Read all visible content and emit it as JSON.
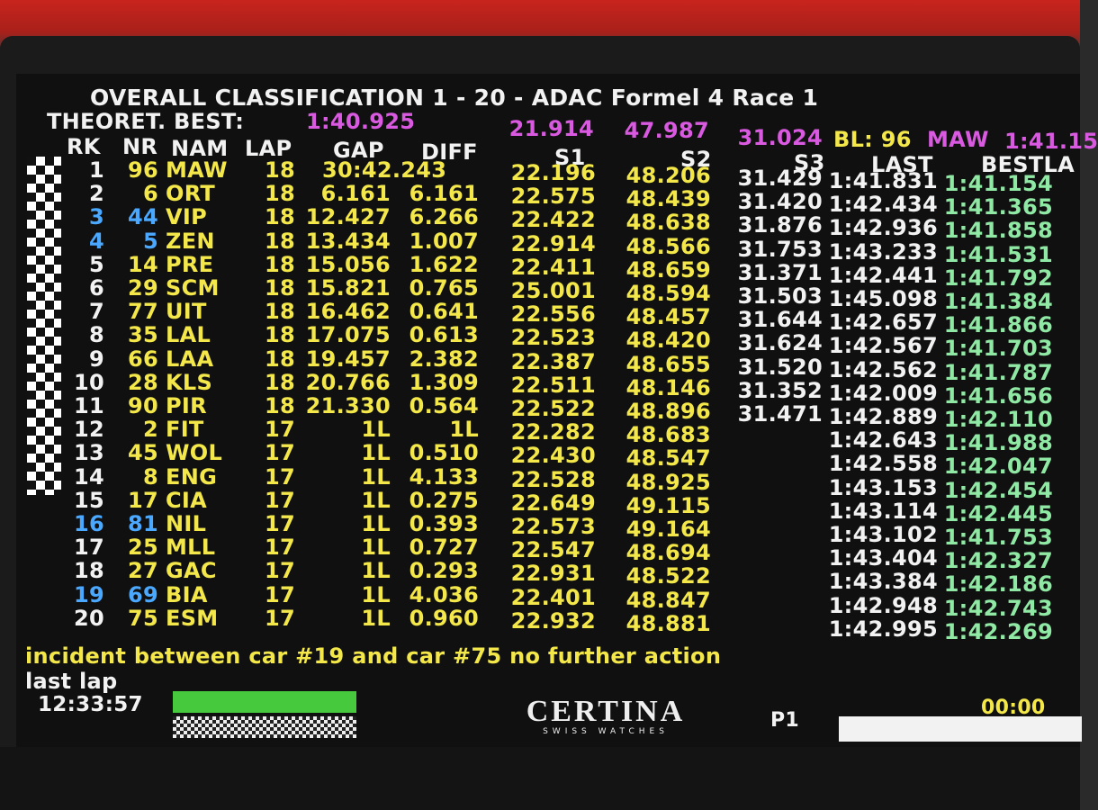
{
  "title": "OVERALL CLASSIFICATION 1 - 20 - ADAC Formel 4 Race 1",
  "theoretical": {
    "label": "THEORET. BEST:",
    "time": "1:40.925",
    "s1": "21.914",
    "s2": "47.987",
    "s3": "31.024",
    "bl_label": "BL: 96",
    "bl_driver": "MAW",
    "bl_time": "1:41.15"
  },
  "headers": {
    "rk": "RK",
    "nr": "NR",
    "nam": "NAM",
    "lap": "LAP",
    "gap": "GAP",
    "diff": "DIFF",
    "s1": "S1",
    "s2": "S2",
    "s3": "S3",
    "last": "LAST",
    "bestlap": "BESTLA"
  },
  "rows": [
    {
      "rk": "1",
      "nr": "96",
      "nam": "MAW",
      "lap": "18",
      "gap": "30:42.243",
      "diff": "",
      "s1": "22.196",
      "s2": "48.206",
      "s3": "31.429",
      "last": "1:41.831",
      "best": "1:41.154",
      "blue": false
    },
    {
      "rk": "2",
      "nr": "6",
      "nam": "ORT",
      "lap": "18",
      "gap": "6.161",
      "diff": "6.161",
      "s1": "22.575",
      "s2": "48.439",
      "s3": "31.420",
      "last": "1:42.434",
      "best": "1:41.365",
      "blue": false
    },
    {
      "rk": "3",
      "nr": "44",
      "nam": "VIP",
      "lap": "18",
      "gap": "12.427",
      "diff": "6.266",
      "s1": "22.422",
      "s2": "48.638",
      "s3": "31.876",
      "last": "1:42.936",
      "best": "1:41.858",
      "blue": true
    },
    {
      "rk": "4",
      "nr": "5",
      "nam": "ZEN",
      "lap": "18",
      "gap": "13.434",
      "diff": "1.007",
      "s1": "22.914",
      "s2": "48.566",
      "s3": "31.753",
      "last": "1:43.233",
      "best": "1:41.531",
      "blue": true
    },
    {
      "rk": "5",
      "nr": "14",
      "nam": "PRE",
      "lap": "18",
      "gap": "15.056",
      "diff": "1.622",
      "s1": "22.411",
      "s2": "48.659",
      "s3": "31.371",
      "last": "1:42.441",
      "best": "1:41.792",
      "blue": false
    },
    {
      "rk": "6",
      "nr": "29",
      "nam": "SCM",
      "lap": "18",
      "gap": "15.821",
      "diff": "0.765",
      "s1": "25.001",
      "s2": "48.594",
      "s3": "31.503",
      "last": "1:45.098",
      "best": "1:41.384",
      "blue": false
    },
    {
      "rk": "7",
      "nr": "77",
      "nam": "UIT",
      "lap": "18",
      "gap": "16.462",
      "diff": "0.641",
      "s1": "22.556",
      "s2": "48.457",
      "s3": "31.644",
      "last": "1:42.657",
      "best": "1:41.866",
      "blue": false
    },
    {
      "rk": "8",
      "nr": "35",
      "nam": "LAL",
      "lap": "18",
      "gap": "17.075",
      "diff": "0.613",
      "s1": "22.523",
      "s2": "48.420",
      "s3": "31.624",
      "last": "1:42.567",
      "best": "1:41.703",
      "blue": false
    },
    {
      "rk": "9",
      "nr": "66",
      "nam": "LAA",
      "lap": "18",
      "gap": "19.457",
      "diff": "2.382",
      "s1": "22.387",
      "s2": "48.655",
      "s3": "31.520",
      "last": "1:42.562",
      "best": "1:41.787",
      "blue": false
    },
    {
      "rk": "10",
      "nr": "28",
      "nam": "KLS",
      "lap": "18",
      "gap": "20.766",
      "diff": "1.309",
      "s1": "22.511",
      "s2": "48.146",
      "s3": "31.352",
      "last": "1:42.009",
      "best": "1:41.656",
      "blue": false
    },
    {
      "rk": "11",
      "nr": "90",
      "nam": "PIR",
      "lap": "18",
      "gap": "21.330",
      "diff": "0.564",
      "s1": "22.522",
      "s2": "48.896",
      "s3": "31.471",
      "last": "1:42.889",
      "best": "1:42.110",
      "blue": false
    },
    {
      "rk": "12",
      "nr": "2",
      "nam": "FIT",
      "lap": "17",
      "gap": "1L",
      "diff": "1L",
      "s1": "22.282",
      "s2": "48.683",
      "s3": "",
      "last": "1:42.643",
      "best": "1:41.988",
      "blue": false
    },
    {
      "rk": "13",
      "nr": "45",
      "nam": "WOL",
      "lap": "17",
      "gap": "1L",
      "diff": "0.510",
      "s1": "22.430",
      "s2": "48.547",
      "s3": "",
      "last": "1:42.558",
      "best": "1:42.047",
      "blue": false
    },
    {
      "rk": "14",
      "nr": "8",
      "nam": "ENG",
      "lap": "17",
      "gap": "1L",
      "diff": "4.133",
      "s1": "22.528",
      "s2": "48.925",
      "s3": "",
      "last": "1:43.153",
      "best": "1:42.454",
      "blue": false
    },
    {
      "rk": "15",
      "nr": "17",
      "nam": "CIA",
      "lap": "17",
      "gap": "1L",
      "diff": "0.275",
      "s1": "22.649",
      "s2": "49.115",
      "s3": "",
      "last": "1:43.114",
      "best": "1:42.445",
      "blue": false
    },
    {
      "rk": "16",
      "nr": "81",
      "nam": "NIL",
      "lap": "17",
      "gap": "1L",
      "diff": "0.393",
      "s1": "22.573",
      "s2": "49.164",
      "s3": "",
      "last": "1:43.102",
      "best": "1:41.753",
      "blue": true
    },
    {
      "rk": "17",
      "nr": "25",
      "nam": "MLL",
      "lap": "17",
      "gap": "1L",
      "diff": "0.727",
      "s1": "22.547",
      "s2": "48.694",
      "s3": "",
      "last": "1:43.404",
      "best": "1:42.327",
      "blue": false
    },
    {
      "rk": "18",
      "nr": "27",
      "nam": "GAC",
      "lap": "17",
      "gap": "1L",
      "diff": "0.293",
      "s1": "22.931",
      "s2": "48.522",
      "s3": "",
      "last": "1:43.384",
      "best": "1:42.186",
      "blue": false
    },
    {
      "rk": "19",
      "nr": "69",
      "nam": "BIA",
      "lap": "17",
      "gap": "1L",
      "diff": "4.036",
      "s1": "22.401",
      "s2": "48.847",
      "s3": "",
      "last": "1:42.948",
      "best": "1:42.743",
      "blue": true
    },
    {
      "rk": "20",
      "nr": "75",
      "nam": "ESM",
      "lap": "17",
      "gap": "1L",
      "diff": "0.960",
      "s1": "22.932",
      "s2": "48.881",
      "s3": "",
      "last": "1:42.995",
      "best": "1:42.269",
      "blue": false
    }
  ],
  "message": "incident between car #19 and car #75 no further action",
  "last_lap_label": "last lap",
  "clock": "12:33:57",
  "brand": {
    "name": "CERTINA",
    "tagline": "SWISS WATCHES"
  },
  "session_label": "P1",
  "session_timer": "00:00",
  "progress_fraction": 1.0
}
